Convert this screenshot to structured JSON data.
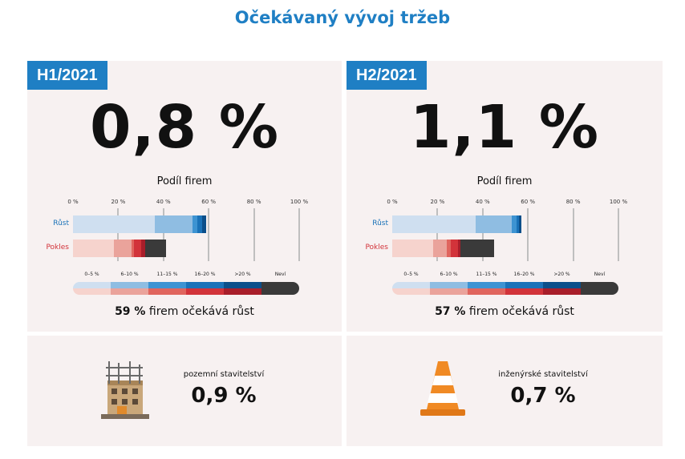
{
  "title": "Očekávaný vývoj tržeb",
  "axis_ticks": [
    "0 %",
    "20 %",
    "40 %",
    "60 %",
    "80 %",
    "100 %"
  ],
  "chart_title": "Podíl firem",
  "row_labels": {
    "growth": "Růst",
    "decline": "Pokles"
  },
  "legend_labels": [
    "0–5 %",
    "6–10 %",
    "11–15 %",
    "16–20 %",
    ">20 %",
    "Neví"
  ],
  "colors": {
    "accent": "#1f7fc4",
    "growth": [
      "#cfdff0",
      "#8fbde2",
      "#3d93d2",
      "#1a72b8",
      "#0b4f8a"
    ],
    "decline": [
      "#f6d3cd",
      "#eaa39b",
      "#e0655e",
      "#d2333a",
      "#a81e2a"
    ],
    "unknown": "#3a3a3a"
  },
  "panels": [
    {
      "period": "H1/2021",
      "value": "0,8 %",
      "summary_bold": "59 %",
      "summary_rest": " firem očekává růst",
      "sector_label": "pozemní stavitelství",
      "sector_value": "0,9 %",
      "sector_icon": "building-construction-icon"
    },
    {
      "period": "H2/2021",
      "value": "1,1 %",
      "summary_bold": "57 %",
      "summary_rest": " firem očekává růst",
      "sector_label": "inženýrské stavitelství",
      "sector_value": "0,7 %",
      "sector_icon": "traffic-cone-icon"
    }
  ],
  "chart_data": [
    {
      "type": "bar",
      "stacked": true,
      "orientation": "horizontal",
      "title": "Podíl firem",
      "categories": [
        "Růst",
        "Pokles"
      ],
      "series": [
        {
          "name": "0–5 %",
          "values": [
            36,
            18
          ]
        },
        {
          "name": "6–10 %",
          "values": [
            17,
            8
          ]
        },
        {
          "name": "11–15 %",
          "values": [
            2,
            1
          ]
        },
        {
          "name": "16–20 %",
          "values": [
            2,
            3
          ]
        },
        {
          "name": ">20 %",
          "values": [
            2,
            2
          ]
        },
        {
          "name": "Neví",
          "values": [
            0,
            9
          ]
        }
      ],
      "xlim": [
        0,
        100
      ],
      "grid": true
    },
    {
      "type": "bar",
      "stacked": true,
      "orientation": "horizontal",
      "title": "Podíl firem",
      "categories": [
        "Růst",
        "Pokles"
      ],
      "series": [
        {
          "name": "0–5 %",
          "values": [
            37,
            18
          ]
        },
        {
          "name": "6–10 %",
          "values": [
            16,
            6
          ]
        },
        {
          "name": "11–15 %",
          "values": [
            2,
            2
          ]
        },
        {
          "name": "16–20 %",
          "values": [
            1,
            3
          ]
        },
        {
          "name": ">20 %",
          "values": [
            1,
            1
          ]
        },
        {
          "name": "Neví",
          "values": [
            0,
            15
          ]
        }
      ],
      "xlim": [
        0,
        100
      ],
      "grid": true
    }
  ]
}
